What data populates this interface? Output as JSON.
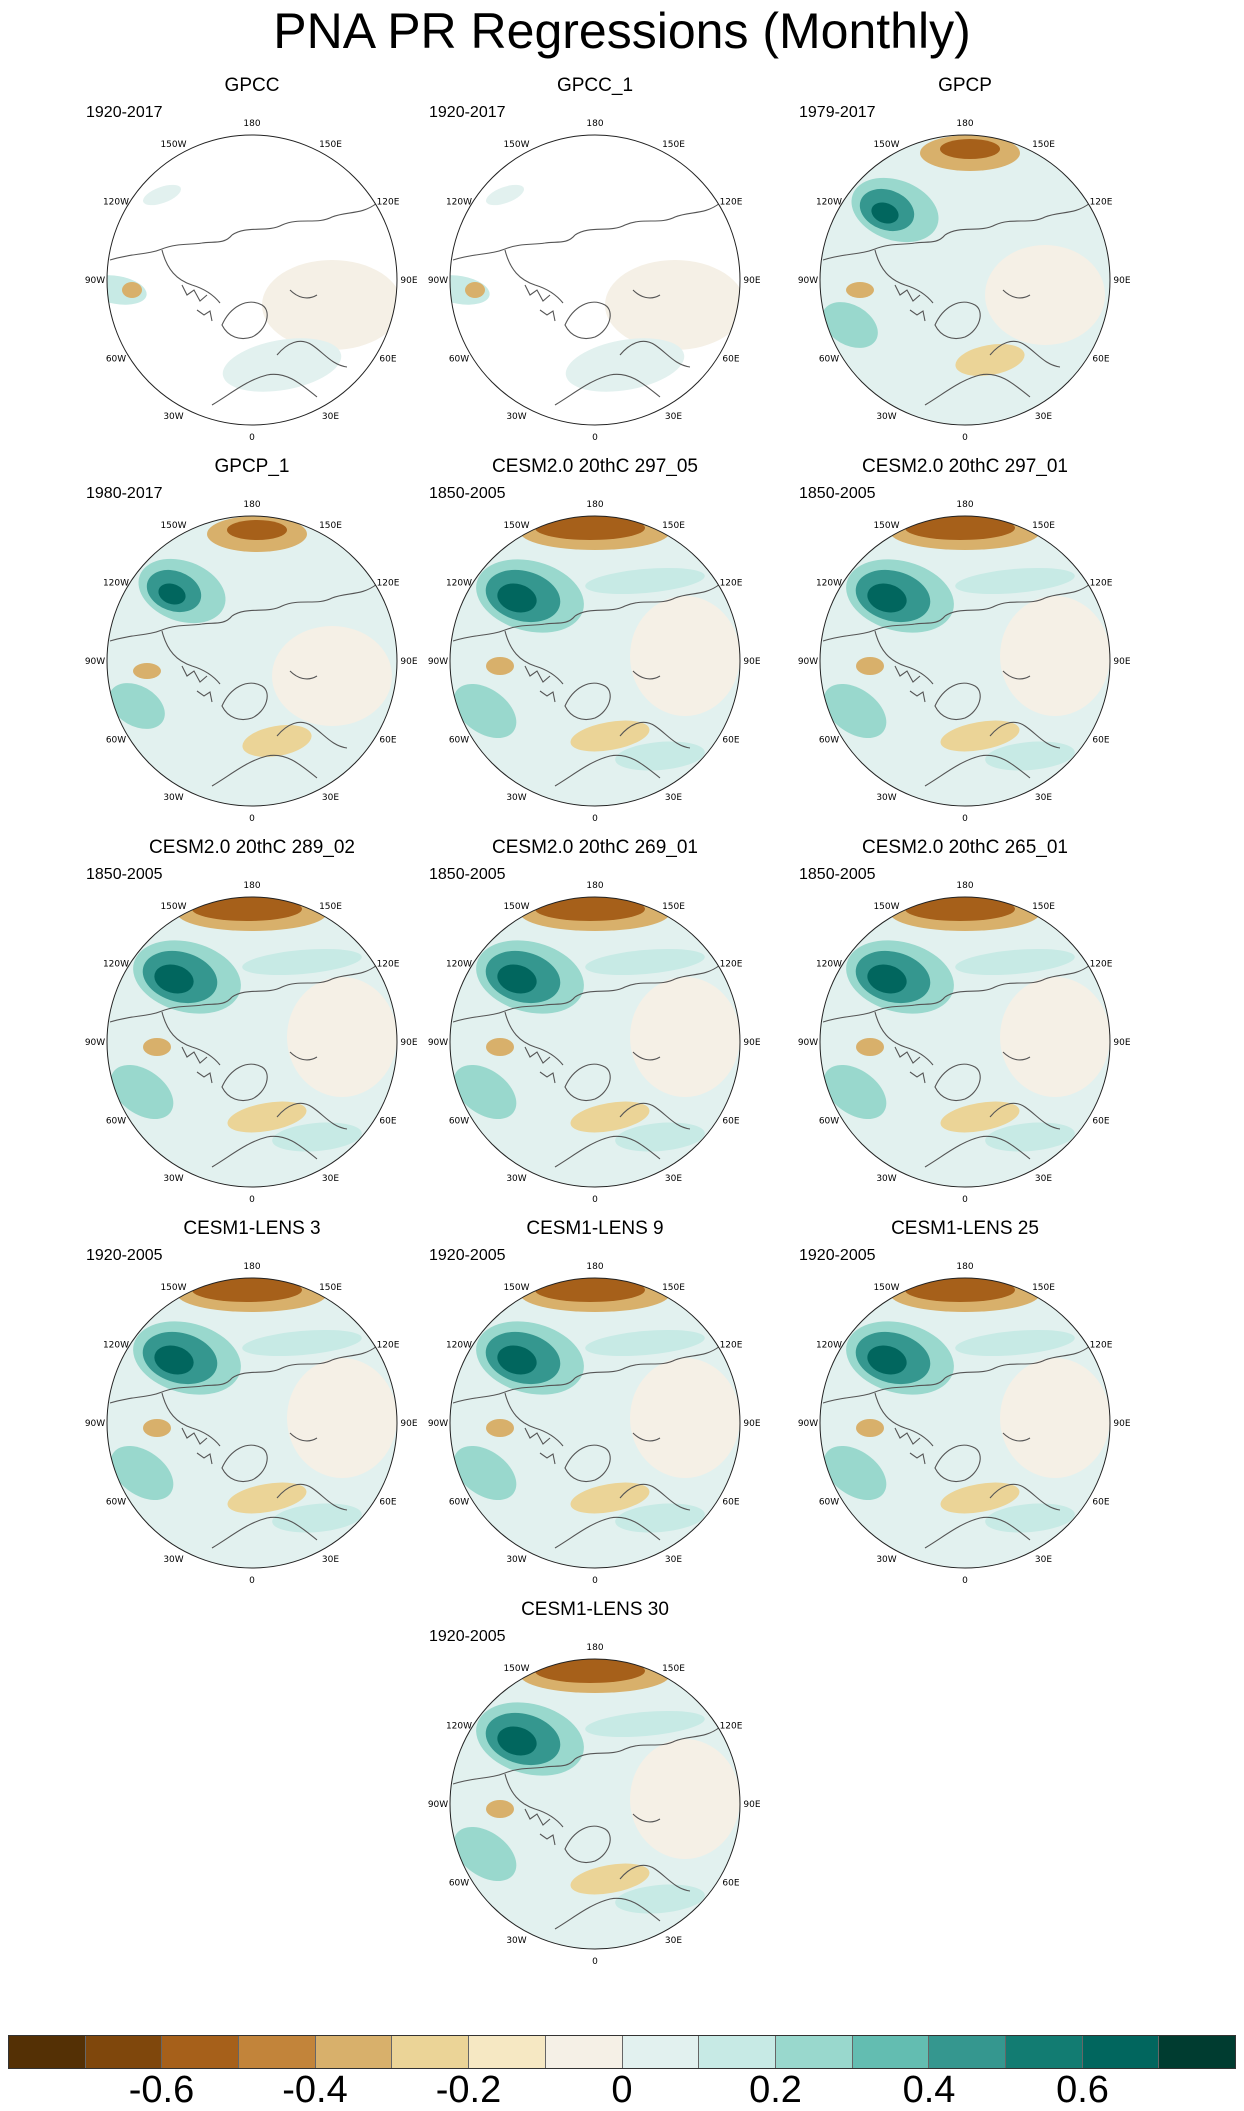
{
  "title": "PNA PR Regressions (Monthly)",
  "lon_labels": [
    "180",
    "150E",
    "120E",
    "90E",
    "60E",
    "30E",
    "0",
    "30W",
    "60W",
    "90W",
    "120W",
    "150W"
  ],
  "panels": [
    {
      "title": "GPCC",
      "period": "1920-2017",
      "style": "gpcc"
    },
    {
      "title": "GPCC_1",
      "period": "1920-2017",
      "style": "gpcc"
    },
    {
      "title": "GPCP",
      "period": "1979-2017",
      "style": "gpcp"
    },
    {
      "title": "GPCP_1",
      "period": "1980-2017",
      "style": "gpcp"
    },
    {
      "title": "CESM2.0 20thC 297_05",
      "period": "1850-2005",
      "style": "model"
    },
    {
      "title": "CESM2.0 20thC 297_01",
      "period": "1850-2005",
      "style": "model"
    },
    {
      "title": "CESM2.0 20thC 289_02",
      "period": "1850-2005",
      "style": "model"
    },
    {
      "title": "CESM2.0 20thC 269_01",
      "period": "1850-2005",
      "style": "model"
    },
    {
      "title": "CESM2.0 20thC 265_01",
      "period": "1850-2005",
      "style": "model"
    },
    {
      "title": "CESM1-LENS 3",
      "period": "1920-2005",
      "style": "model"
    },
    {
      "title": "CESM1-LENS 9",
      "period": "1920-2005",
      "style": "model"
    },
    {
      "title": "CESM1-LENS 25",
      "period": "1920-2005",
      "style": "model"
    },
    {
      "title": "CESM1-LENS 30",
      "period": "1920-2005",
      "style": "model"
    }
  ],
  "colorbar": {
    "colors": [
      "#543005",
      "#7f470c",
      "#a6601a",
      "#c2843a",
      "#d8b06b",
      "#ebd497",
      "#f6e8c3",
      "#f5f0e6",
      "#e2f1ef",
      "#c7eae5",
      "#99d8cd",
      "#63bdb1",
      "#35978f",
      "#127c72",
      "#01665e",
      "#003c30"
    ],
    "labels": [
      "-0.6",
      "-0.4",
      "-0.2",
      "0",
      "0.2",
      "0.4",
      "0.6"
    ]
  },
  "colors": {
    "land_outline": "#555555",
    "background": "#ffffff"
  }
}
